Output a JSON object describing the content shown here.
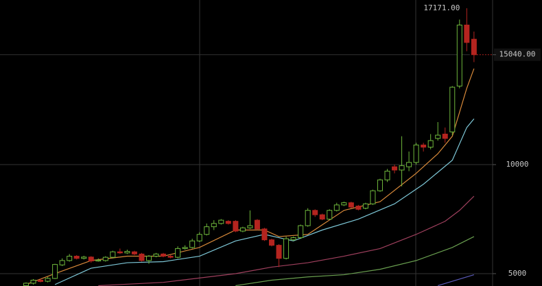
{
  "chart_data": {
    "type": "candlestick",
    "ylim": [
      4433,
      17548
    ],
    "yticks": [
      5000,
      10000,
      {
        "value": 15040,
        "label": "15040.00"
      }
    ],
    "grid": true,
    "up_color": "#6fb83c",
    "down_color": "#b4241f",
    "high_label": "17171.00",
    "open": [
      4450,
      4560,
      4700,
      4650,
      4780,
      5400,
      5600,
      5800,
      5700,
      5760,
      5580,
      5600,
      5750,
      6000,
      5950,
      6000,
      5900,
      5600,
      5800,
      5900,
      5800,
      5750,
      6150,
      6200,
      6500,
      6800,
      7150,
      7300,
      7400,
      7400,
      6950,
      7100,
      7450,
      7050,
      6550,
      6300,
      5700,
      6550,
      6650,
      7200,
      7900,
      7700,
      7500,
      7900,
      8150,
      8250,
      8100,
      8000,
      8200,
      8800,
      9300,
      9900,
      9750,
      9900,
      10100,
      10900,
      10800,
      11200,
      11400,
      11500,
      13600,
      16400,
      15750
    ],
    "close": [
      4560,
      4700,
      4640,
      4780,
      5420,
      5600,
      5800,
      5700,
      5760,
      5580,
      5620,
      5750,
      6000,
      5950,
      6020,
      5900,
      5600,
      5800,
      5900,
      5800,
      5750,
      6150,
      6200,
      6500,
      6800,
      7150,
      7300,
      7450,
      7300,
      6950,
      7100,
      7200,
      7050,
      6550,
      6300,
      5700,
      6600,
      6650,
      7200,
      7900,
      7700,
      7500,
      7900,
      8150,
      8250,
      8050,
      7950,
      8200,
      8800,
      9300,
      9700,
      9750,
      9950,
      10100,
      10900,
      10800,
      11100,
      11350,
      11200,
      13550,
      16400,
      15600,
      15040
    ],
    "high": [
      4600,
      4750,
      4780,
      4850,
      5450,
      5700,
      5900,
      5850,
      5820,
      5800,
      5700,
      5800,
      6050,
      6150,
      6100,
      6050,
      5950,
      5850,
      5950,
      5950,
      5850,
      6250,
      6300,
      6600,
      6900,
      7300,
      7450,
      7500,
      7450,
      7450,
      7150,
      7900,
      7500,
      7100,
      6600,
      6350,
      6700,
      6700,
      7250,
      8000,
      7950,
      7750,
      7950,
      8250,
      8300,
      8300,
      8150,
      8250,
      8850,
      9350,
      9800,
      10000,
      11300,
      10600,
      11000,
      11000,
      11400,
      11950,
      11700,
      13600,
      16650,
      17171,
      16100
    ],
    "low": [
      4440,
      4500,
      4600,
      4600,
      4750,
      5350,
      5550,
      5650,
      5650,
      5500,
      5550,
      5550,
      5700,
      5900,
      5900,
      5850,
      5550,
      5450,
      5750,
      5750,
      5700,
      5700,
      6100,
      6150,
      6450,
      6750,
      7000,
      7250,
      7250,
      6900,
      6900,
      7050,
      7000,
      6500,
      6250,
      5300,
      5650,
      6500,
      6600,
      7150,
      7600,
      7450,
      7450,
      7850,
      8100,
      8000,
      7900,
      7950,
      8150,
      8750,
      9200,
      9600,
      9000,
      9700,
      10000,
      10600,
      10700,
      11100,
      11000,
      11350,
      13500,
      15200,
      14700
    ],
    "lines": [
      {
        "color": "#d98a3a",
        "x": [
          0,
          4,
          9,
          14,
          19,
          24,
          29,
          33,
          35,
          39,
          44,
          49,
          54,
          57,
          59,
          61,
          62
        ],
        "values": [
          4500,
          5000,
          5600,
          5800,
          5800,
          6200,
          7000,
          7000,
          6700,
          6800,
          7900,
          8300,
          9600,
          10500,
          11300,
          13500,
          14400
        ]
      },
      {
        "color": "#7ec8d8",
        "x": [
          4,
          9,
          14,
          19,
          24,
          29,
          33,
          37,
          41,
          46,
          51,
          55,
          59,
          61,
          62
        ],
        "values": [
          4500,
          5250,
          5500,
          5550,
          5800,
          6500,
          6800,
          6500,
          7000,
          7500,
          8200,
          9100,
          10200,
          11700,
          12100
        ]
      },
      {
        "color": "#a0405e",
        "x": [
          10,
          19,
          29,
          34,
          39,
          44,
          49,
          54,
          58,
          60,
          62
        ],
        "values": [
          4450,
          4600,
          5000,
          5300,
          5500,
          5800,
          6150,
          6800,
          7400,
          7900,
          8550
        ]
      },
      {
        "color": "#6aa050",
        "x": [
          29,
          34,
          39,
          44,
          49,
          54,
          59,
          62
        ],
        "values": [
          4450,
          4700,
          4850,
          4950,
          5200,
          5600,
          6200,
          6700
        ]
      },
      {
        "color": "#5a5ab8",
        "x": [
          57,
          62
        ],
        "values": [
          4450,
          4950
        ]
      }
    ]
  }
}
